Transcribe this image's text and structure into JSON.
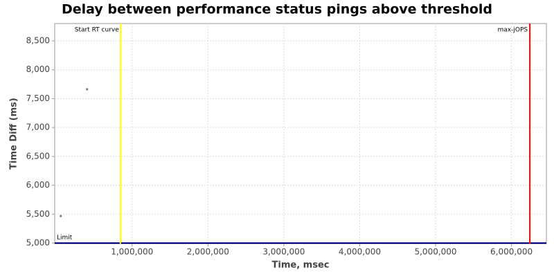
{
  "chart_data": {
    "type": "scatter",
    "title": "Delay between performance status pings above threshold",
    "x_label": "Time, msec",
    "y_label": "Time Diff (ms)",
    "x": [
      59000,
      406000
    ],
    "values": [
      5468,
      7662
    ],
    "color": "#808080",
    "xlim": [
      -20000,
      6460000
    ],
    "ylim": [
      4988,
      8800
    ],
    "xticks": [
      {
        "value": 1000000,
        "label": "1,000,000"
      },
      {
        "value": 2000000,
        "label": "2,000,000"
      },
      {
        "value": 3000000,
        "label": "3,000,000"
      },
      {
        "value": 4000000,
        "label": "4,000,000"
      },
      {
        "value": 5000000,
        "label": "5,000,000"
      },
      {
        "value": 6000000,
        "label": "6,000,000"
      }
    ],
    "yticks": [
      {
        "value": 5000,
        "label": "5,000"
      },
      {
        "value": 5500,
        "label": "5,500"
      },
      {
        "value": 6000,
        "label": "6,000"
      },
      {
        "value": 6500,
        "label": "6,500"
      },
      {
        "value": 7000,
        "label": "7,000"
      },
      {
        "value": 7500,
        "label": "7,500"
      },
      {
        "value": 8000,
        "label": "8,000"
      },
      {
        "value": 8500,
        "label": "8,500"
      }
    ],
    "grid": true,
    "x_markers": [
      {
        "label": "Start RT curve",
        "value": 845000,
        "color": "#ffff00"
      },
      {
        "label": "max-jOPS",
        "value": 6242000,
        "color": "#ff0000"
      }
    ],
    "y_markers": [
      {
        "label": "Limit",
        "value": 5000,
        "color": "#000080"
      }
    ]
  }
}
